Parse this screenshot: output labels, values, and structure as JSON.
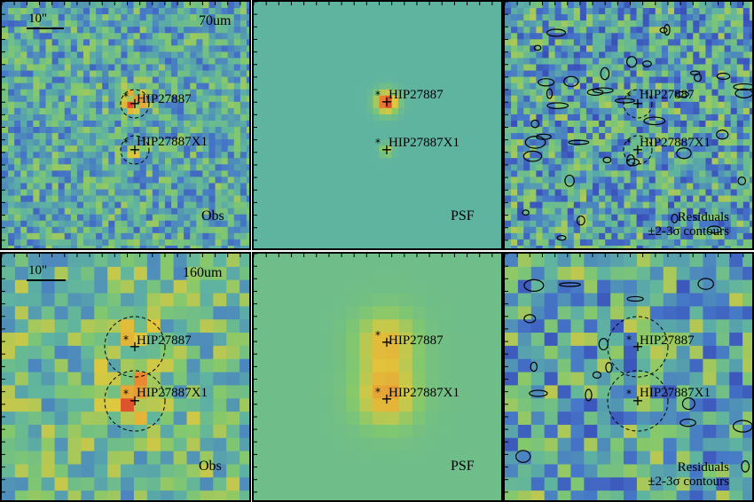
{
  "top_row": {
    "scale_label": "10\"",
    "band": "70um",
    "panel_obs_label": "Obs",
    "panel_psf_label": "PSF",
    "panel_res_label_1": "Residuals",
    "panel_res_label_2": "±2-3σ contours",
    "source_1": "HIP27887",
    "source_2": "HIP27887X1"
  },
  "bottom_row": {
    "scale_label": "10\"",
    "band": "160um",
    "panel_obs_label": "Obs",
    "panel_psf_label": "PSF",
    "panel_res_label_1": "Residuals",
    "panel_res_label_2": "±2-3σ contours",
    "source_1": "HIP27887",
    "source_2": "HIP27887X1"
  },
  "colors": {
    "background": "#6fb59a",
    "psf_background": "#71b89a",
    "low": "#3a3fae",
    "high": "#d83a2a",
    "frame": "#000000"
  }
}
